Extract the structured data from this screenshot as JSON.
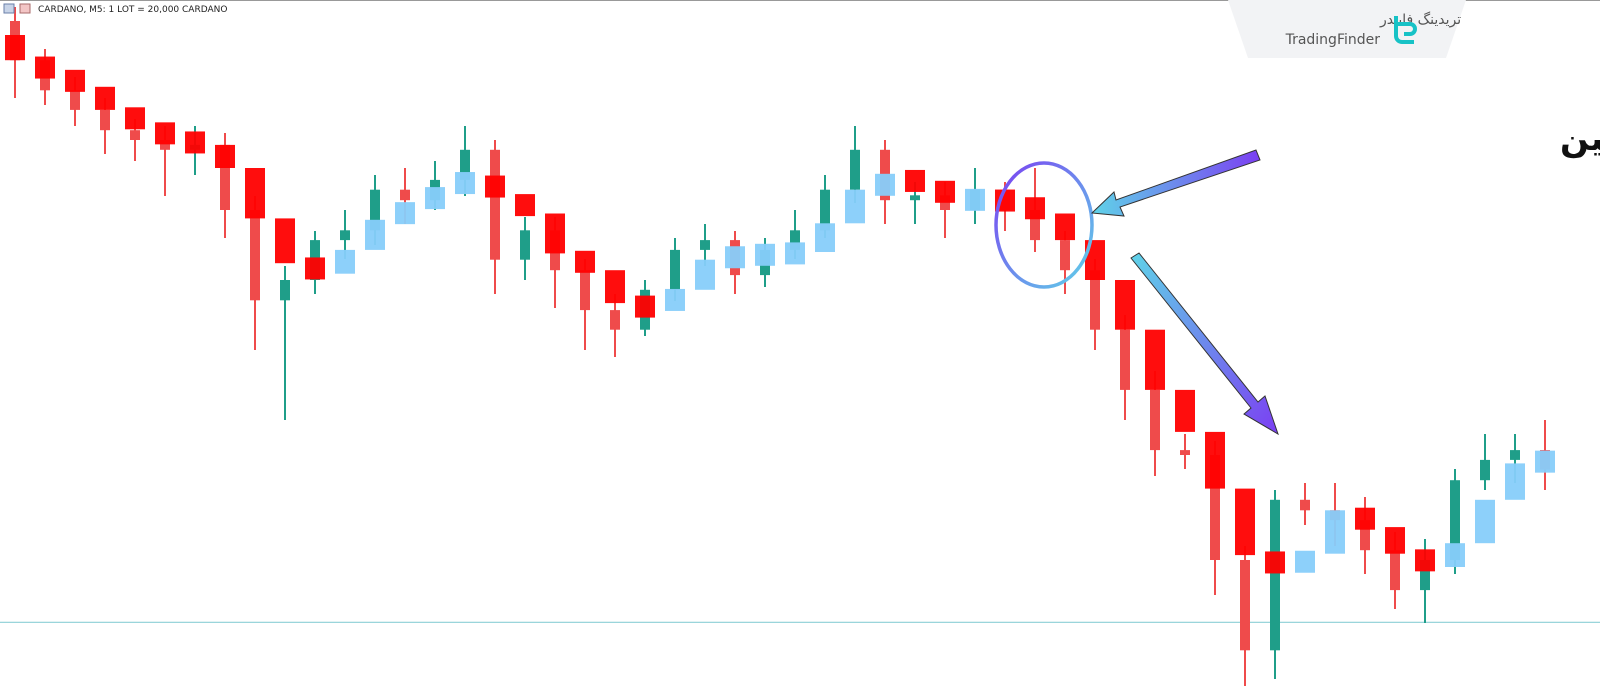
{
  "chart_data": {
    "type": "candlestick",
    "header": "CARDANO, M5:  1 LOT = 20,000 CARDANO",
    "annotation": "شکست به سمت پایین",
    "ylim": [
      0,
      100
    ],
    "up_color": "#1f9e89",
    "down_color": "#ef4b4b",
    "indicator_up_color": "#87cefa",
    "indicator_down_color": "#ff0000",
    "level": 11.1,
    "level_color": "#8ccfd6",
    "candles": [
      [
        97,
        99,
        86,
        91.4
      ],
      [
        91.4,
        93,
        85,
        87.1
      ],
      [
        87.1,
        89,
        82,
        84.3
      ],
      [
        84.3,
        86,
        78,
        81.4
      ],
      [
        81.4,
        83,
        77,
        80
      ],
      [
        80,
        82,
        72,
        78.6
      ],
      [
        78.6,
        82,
        75,
        79.3
      ],
      [
        79.3,
        81,
        66,
        70
      ],
      [
        70,
        72,
        50,
        57.1
      ],
      [
        57.1,
        62,
        40,
        60
      ],
      [
        60,
        67,
        58,
        65.7
      ],
      [
        65.7,
        70,
        63,
        67.1
      ],
      [
        67.1,
        75,
        65,
        72.9
      ],
      [
        72.9,
        76,
        68,
        71.4
      ],
      [
        71.4,
        77,
        70,
        74.3
      ],
      [
        74.3,
        82,
        72,
        78.6
      ],
      [
        78.6,
        80,
        58,
        62.9
      ],
      [
        62.9,
        69,
        60,
        67.1
      ],
      [
        67.1,
        69,
        56,
        61.4
      ],
      [
        61.4,
        63,
        50,
        55.7
      ],
      [
        55.7,
        58,
        49,
        52.9
      ],
      [
        52.9,
        60,
        52,
        58.6
      ],
      [
        58.6,
        66,
        57,
        64.3
      ],
      [
        64.3,
        68,
        62,
        65.7
      ],
      [
        65.7,
        67,
        58,
        60.7
      ],
      [
        60.7,
        66,
        59,
        64.3
      ],
      [
        64.3,
        70,
        63,
        67.1
      ],
      [
        67.1,
        75,
        66,
        72.9
      ],
      [
        72.9,
        82,
        71,
        78.6
      ],
      [
        78.6,
        80,
        68,
        71.4
      ],
      [
        71.4,
        74,
        68,
        72.1
      ],
      [
        72.1,
        74,
        66,
        70
      ],
      [
        70,
        76,
        68,
        72.9
      ],
      [
        72.9,
        74,
        67,
        70
      ],
      [
        70,
        76,
        64,
        65.7
      ],
      [
        65.7,
        67,
        58,
        61.4
      ],
      [
        61.4,
        63,
        50,
        52.9
      ],
      [
        52.9,
        55,
        40,
        44.3
      ],
      [
        44.3,
        47,
        32,
        35.7
      ],
      [
        35.7,
        38,
        33,
        35
      ],
      [
        35,
        37,
        15,
        20
      ],
      [
        20,
        22,
        2,
        7.1
      ],
      [
        7.1,
        30,
        3,
        28.6
      ],
      [
        28.6,
        31,
        25,
        27.1
      ],
      [
        27.1,
        31,
        22,
        25.7
      ],
      [
        25.7,
        29,
        18,
        21.4
      ],
      [
        21.4,
        24,
        13,
        15.7
      ],
      [
        15.7,
        23,
        11,
        20
      ],
      [
        20,
        33,
        18,
        31.4
      ],
      [
        31.4,
        38,
        30,
        34.3
      ],
      [
        34.3,
        38,
        31,
        35.7
      ],
      [
        35.7,
        40,
        30,
        32.9
      ]
    ],
    "indicator": [
      [
        95,
        91.4
      ],
      [
        91.4,
        89.3
      ],
      [
        89.3,
        87.6
      ],
      [
        87.6,
        84.3
      ],
      [
        84.3,
        81.9
      ],
      [
        81.9,
        80
      ],
      [
        80,
        79.3
      ],
      [
        79.3,
        76
      ],
      [
        76,
        68.8
      ],
      [
        68.8,
        62.4
      ],
      [
        62.4,
        60.9
      ],
      [
        60.9,
        64.3
      ],
      [
        64.3,
        68.6
      ],
      [
        68.6,
        70.5
      ],
      [
        70.5,
        72.9
      ],
      [
        72.9,
        74.8
      ],
      [
        74.8,
        71.9
      ],
      [
        71.9,
        69.5
      ],
      [
        69.5,
        63.8
      ],
      [
        63.8,
        61.4
      ],
      [
        61.4,
        56.7
      ],
      [
        56.7,
        55.7
      ],
      [
        55.7,
        58.6
      ],
      [
        58.6,
        62.9
      ],
      [
        62.9,
        63.6
      ],
      [
        63.6,
        63.6
      ],
      [
        63.6,
        64
      ],
      [
        64,
        68.1
      ],
      [
        68.1,
        72.9
      ],
      [
        72.9,
        74.3
      ],
      [
        74.3,
        74
      ],
      [
        74,
        71.2
      ],
      [
        71.2,
        71.7
      ],
      [
        71.7,
        71
      ],
      [
        71,
        69.5
      ],
      [
        69.5,
        65.7
      ],
      [
        65.7,
        60
      ],
      [
        60,
        52.9
      ],
      [
        52.9,
        44.3
      ],
      [
        44.3,
        38.3
      ],
      [
        38.3,
        30.2
      ],
      [
        30.2,
        20.7
      ],
      [
        20.7,
        18.6
      ],
      [
        18.6,
        20.9
      ],
      [
        20.9,
        27.1
      ],
      [
        27.1,
        24.7
      ],
      [
        24.7,
        20.9
      ],
      [
        20.9,
        19
      ],
      [
        19,
        22.4
      ],
      [
        22.4,
        28.6
      ],
      [
        28.6,
        33.8
      ],
      [
        33.8,
        34.3
      ]
    ]
  },
  "watermark": {
    "name_fa": "تریدینگ فایندر",
    "name_en": "TradingFinder"
  }
}
